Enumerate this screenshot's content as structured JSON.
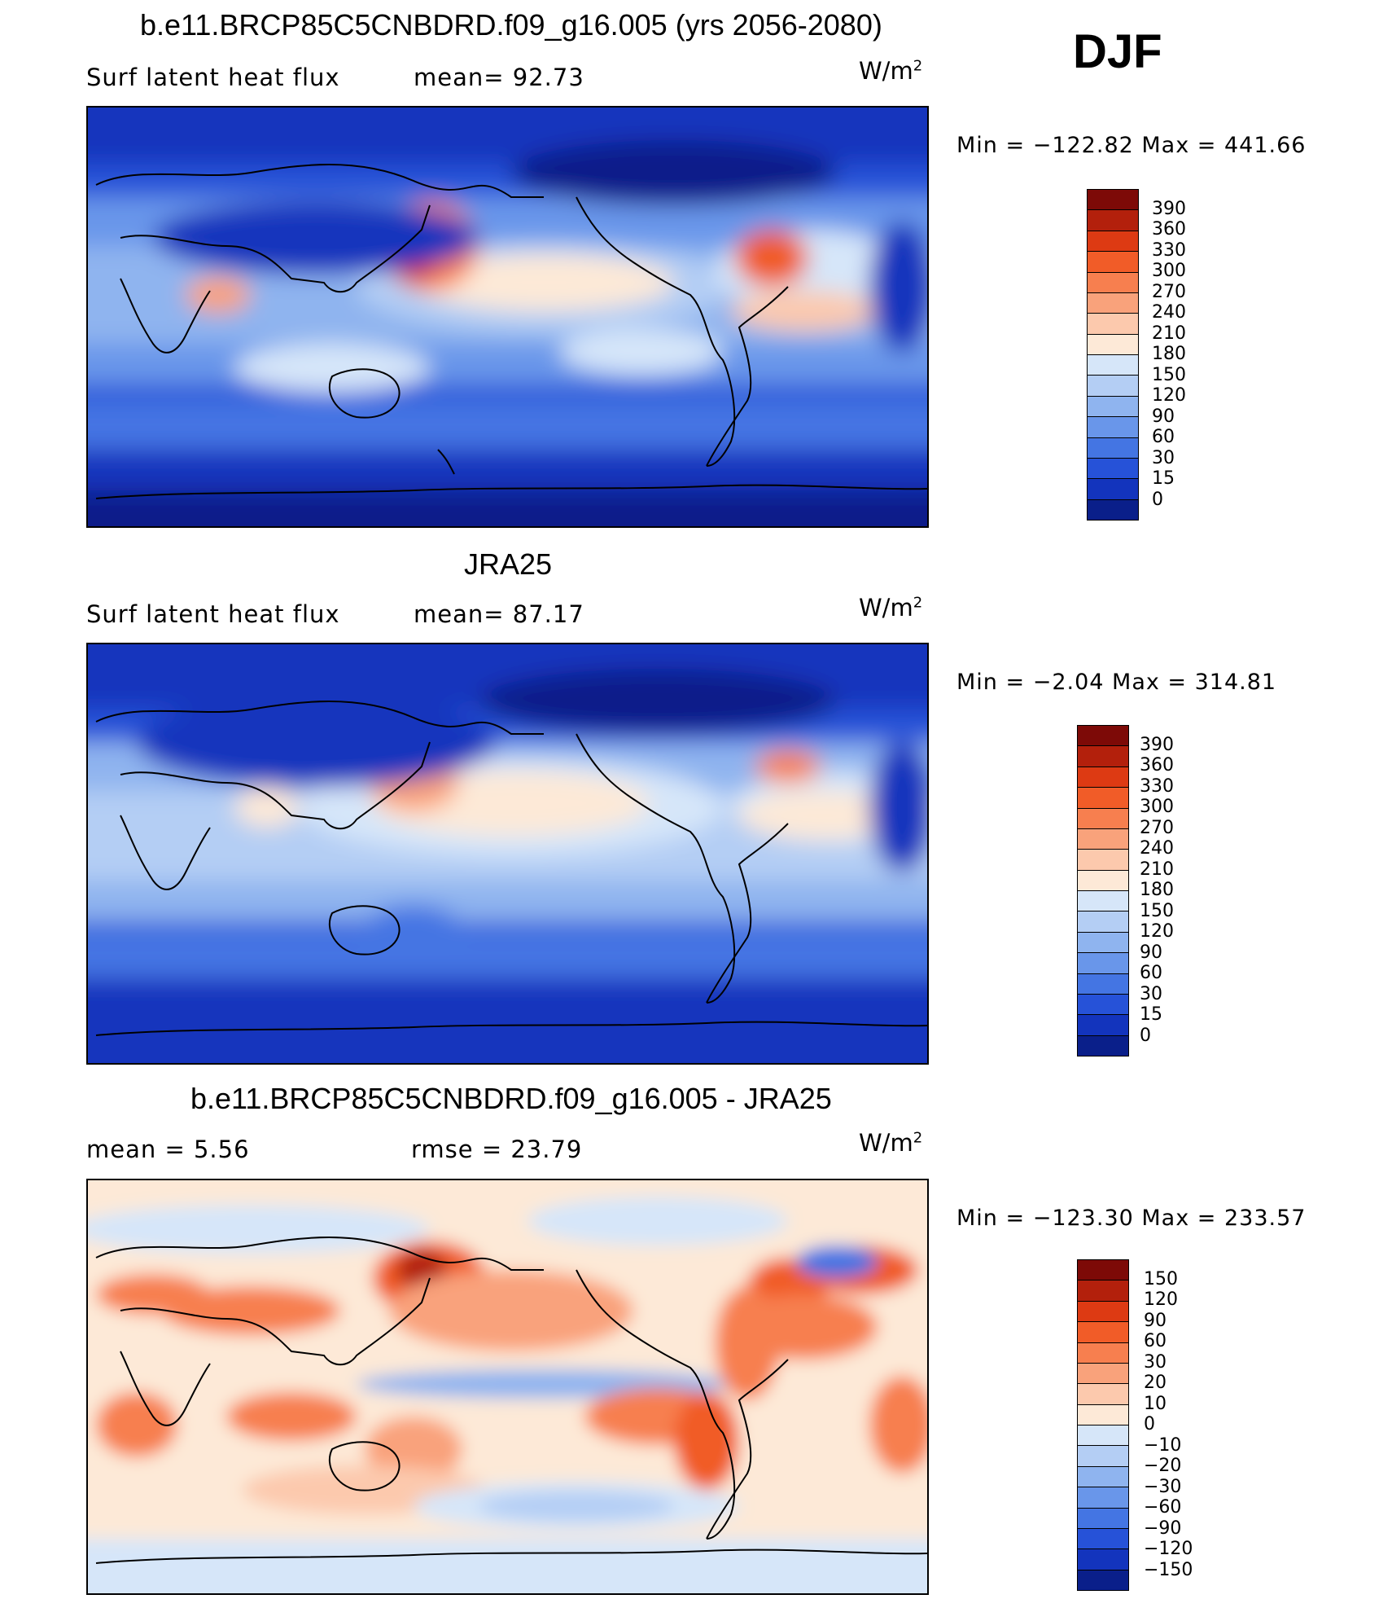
{
  "season": "DJF",
  "units_base": "W/m",
  "units_exp": "2",
  "panels": [
    {
      "title": "b.e11.BRCP85C5CNBDRD.f09_g16.005 (yrs 2056-2080)",
      "left_label": "Surf  latent  heat  flux",
      "right_label": "mean=   92.73",
      "min_label": "Min  =  −122.82  Max  =  441.66",
      "legend_values": [
        "390",
        "360",
        "330",
        "300",
        "270",
        "240",
        "210",
        "180",
        "150",
        "120",
        "90",
        "60",
        "30",
        "15",
        "0"
      ]
    },
    {
      "title": "JRA25",
      "left_label": "Surf  latent  heat  flux",
      "right_label": "mean=   87.17",
      "min_label": "Min  =    −2.04  Max  =  314.81",
      "legend_values": [
        "390",
        "360",
        "330",
        "300",
        "270",
        "240",
        "210",
        "180",
        "150",
        "120",
        "90",
        "60",
        "30",
        "15",
        "0"
      ]
    },
    {
      "title": "b.e11.BRCP85C5CNBDRD.f09_g16.005 - JRA25",
      "left_label": "mean  =     5.56",
      "right_label": "rmse  =    23.79",
      "min_label": "Min  =  −123.30  Max  =  233.57",
      "legend_values": [
        "150",
        "120",
        "90",
        "60",
        "30",
        "20",
        "10",
        "0",
        "−10",
        "−20",
        "−30",
        "−60",
        "−90",
        "−120",
        "−150"
      ]
    }
  ],
  "colors": {
    "abs_scale": [
      "#7d0a07",
      "#b3200c",
      "#dd3a13",
      "#f15c28",
      "#f77f4f",
      "#f9a27b",
      "#fcc9ad",
      "#fde9d7",
      "#d6e6f9",
      "#b4cef4",
      "#8fb4ef",
      "#6996ea",
      "#4475e3",
      "#2652d8",
      "#1334bd",
      "#0a1f8a"
    ],
    "diff_scale": [
      "#7d0a07",
      "#b3200c",
      "#dd3a13",
      "#f15c28",
      "#f77f4f",
      "#f9a27b",
      "#fcc9ad",
      "#fde9d7",
      "#d6e6f9",
      "#b4cef4",
      "#8fb4ef",
      "#6996ea",
      "#4475e3",
      "#2652d8",
      "#1334bd",
      "#0a1f8a"
    ]
  }
}
